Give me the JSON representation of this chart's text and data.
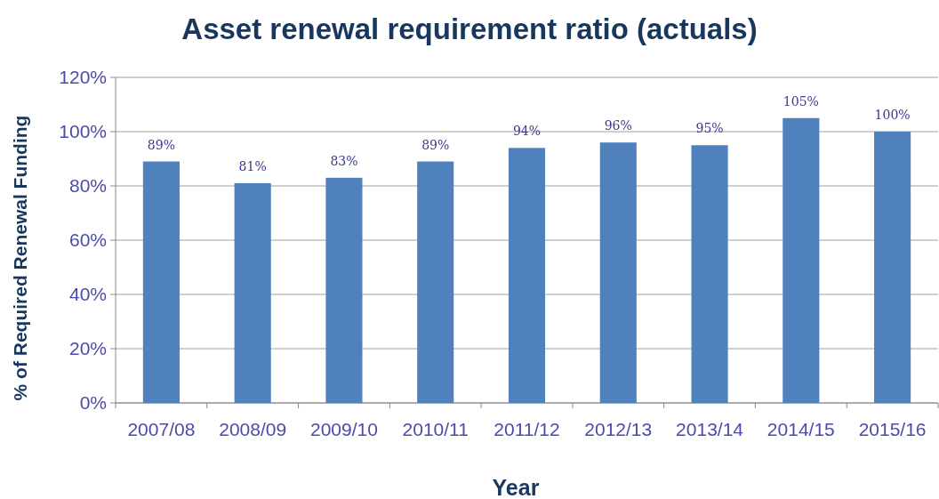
{
  "chart_data": {
    "type": "bar",
    "title": "Asset renewal requirement ratio (actuals)",
    "xlabel": "Year",
    "ylabel": "% of Required Renewal Funding",
    "categories": [
      "2007/08",
      "2008/09",
      "2009/10",
      "2010/11",
      "2011/12",
      "2012/13",
      "2013/14",
      "2014/15",
      "2015/16"
    ],
    "values": [
      89,
      81,
      83,
      89,
      94,
      96,
      95,
      105,
      100
    ],
    "value_labels": [
      "89%",
      "81%",
      "83%",
      "89%",
      "94%",
      "96%",
      "95%",
      "105%",
      "100%"
    ],
    "color": "#4f81bd",
    "ylim": [
      0,
      120
    ],
    "yticks": [
      {
        "value": 0,
        "label": "0%"
      },
      {
        "value": 20,
        "label": "20%"
      },
      {
        "value": 40,
        "label": "40%"
      },
      {
        "value": 60,
        "label": "60%"
      },
      {
        "value": 80,
        "label": "80%"
      },
      {
        "value": 100,
        "label": "100%"
      },
      {
        "value": 120,
        "label": "120%"
      }
    ],
    "grid": "y"
  }
}
